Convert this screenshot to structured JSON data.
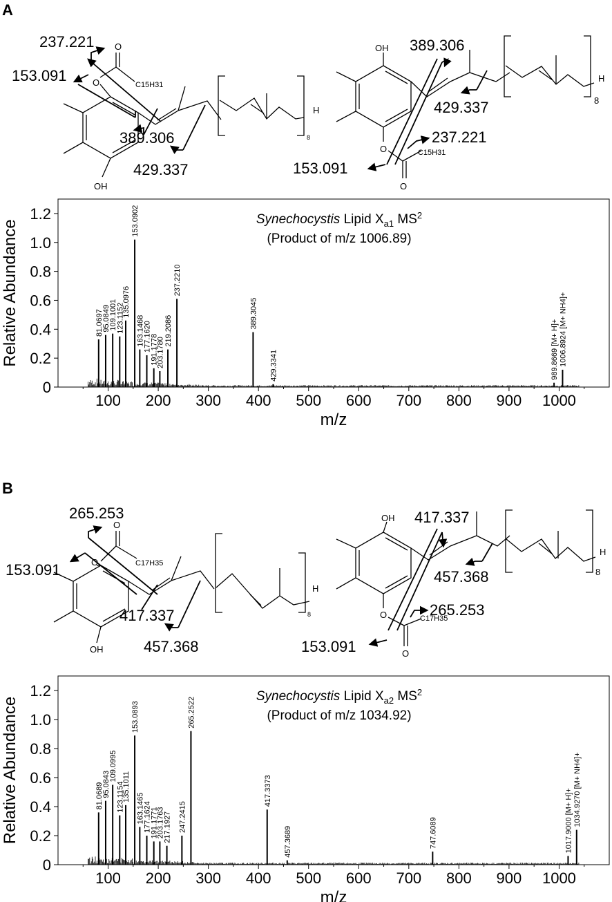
{
  "panels": [
    {
      "letter": "A",
      "structure": {
        "left": {
          "oh": "OH",
          "carbonyl_o": "O",
          "ester_o": "O",
          "chain": "C15H31",
          "h_end": "H",
          "repeat_n": "8",
          "fragments": [
            "237.221",
            "153.091",
            "389.306",
            "429.337"
          ]
        },
        "right": {
          "oh": "OH",
          "carbonyl_o": "O",
          "ester_o": "O",
          "chain": "C15H31",
          "h_end": "H",
          "repeat_n": "8",
          "fragments": [
            "389.306",
            "429.337",
            "237.221",
            "153.091"
          ]
        }
      },
      "chart_data": {
        "type": "bar",
        "title": "Synechocystis  Lipid Xa1  MS2",
        "title_parts": {
          "italic": "Synechocystis",
          "rest": "Lipid X",
          "subscript": "a1",
          "ms": "MS",
          "superscript": "2"
        },
        "subtitle": "(Product of m/z 1006.89)",
        "xlabel": "m/z",
        "ylabel": "Relative Abundance",
        "xlim": [
          0,
          1100
        ],
        "ylim": [
          0,
          1.3
        ],
        "xticks": [
          100,
          200,
          300,
          400,
          500,
          600,
          700,
          800,
          900,
          1000
        ],
        "yticks": [
          0,
          0.2,
          0.4,
          0.6,
          0.8,
          1.0,
          1.2
        ],
        "ytick_labels": [
          "0",
          "0.2",
          "0.4",
          "0.6",
          "0.8",
          "1.0",
          "1.2"
        ],
        "peaks": [
          {
            "x": 81.0697,
            "y": 0.33,
            "label": "81.0697"
          },
          {
            "x": 95.0849,
            "y": 0.36,
            "label": "95.0849"
          },
          {
            "x": 109.1001,
            "y": 0.37,
            "label": "109.1001"
          },
          {
            "x": 123.1152,
            "y": 0.35,
            "label": "123.1152"
          },
          {
            "x": 135.0976,
            "y": 0.46,
            "label": "135.0976"
          },
          {
            "x": 153.0902,
            "y": 1.02,
            "label": "153.0902"
          },
          {
            "x": 163.1468,
            "y": 0.26,
            "label": "163.1468"
          },
          {
            "x": 177.162,
            "y": 0.22,
            "label": "177.1620"
          },
          {
            "x": 191.1778,
            "y": 0.13,
            "label": "191.1778"
          },
          {
            "x": 203.178,
            "y": 0.11,
            "label": "203.1780"
          },
          {
            "x": 219.2086,
            "y": 0.26,
            "label": "219.2086"
          },
          {
            "x": 237.221,
            "y": 0.61,
            "label": "237.2210"
          },
          {
            "x": 389.3045,
            "y": 0.38,
            "label": "389.3045"
          },
          {
            "x": 429.3341,
            "y": 0.02,
            "label": "429.3341"
          },
          {
            "x": 989.8669,
            "y": 0.03,
            "label": "989.8669 [M+ H]+"
          },
          {
            "x": 1006.8924,
            "y": 0.12,
            "label": "1006.8924 [M+ NH4]+"
          }
        ]
      }
    },
    {
      "letter": "B",
      "structure": {
        "left": {
          "oh": "OH",
          "carbonyl_o": "O",
          "ester_o": "O",
          "chain": "C17H35",
          "h_end": "H",
          "repeat_n": "8",
          "fragments": [
            "265.253",
            "153.091",
            "417.337",
            "457.368"
          ]
        },
        "right": {
          "oh": "OH",
          "carbonyl_o": "O",
          "ester_o": "O",
          "chain": "C17H35",
          "h_end": "H",
          "repeat_n": "8",
          "fragments": [
            "417.337",
            "457.368",
            "265.253",
            "153.091"
          ]
        }
      },
      "chart_data": {
        "type": "bar",
        "title": "Synechocystis  Lipid Xa2  MS2",
        "title_parts": {
          "italic": "Synechocystis",
          "rest": "Lipid X",
          "subscript": "a2",
          "ms": "MS",
          "superscript": "2"
        },
        "subtitle": "(Product of m/z 1034.92)",
        "xlabel": "m/z",
        "ylabel": "Relative Abundance",
        "xlim": [
          0,
          1100
        ],
        "ylim": [
          0,
          1.3
        ],
        "xticks": [
          100,
          200,
          300,
          400,
          500,
          600,
          700,
          800,
          900,
          1000
        ],
        "yticks": [
          0,
          0.2,
          0.4,
          0.6,
          0.8,
          1.0,
          1.2
        ],
        "ytick_labels": [
          "0",
          "0.2",
          "0.4",
          "0.6",
          "0.8",
          "1.0",
          "1.2"
        ],
        "peaks": [
          {
            "x": 81.0689,
            "y": 0.36,
            "label": "81.0689"
          },
          {
            "x": 95.0843,
            "y": 0.44,
            "label": "95.0843"
          },
          {
            "x": 109.0995,
            "y": 0.55,
            "label": "109.0995"
          },
          {
            "x": 123.1154,
            "y": 0.34,
            "label": "123.1154"
          },
          {
            "x": 135.1011,
            "y": 0.41,
            "label": "135.1011"
          },
          {
            "x": 153.0893,
            "y": 0.89,
            "label": "153.0893"
          },
          {
            "x": 163.1465,
            "y": 0.26,
            "label": "163.1465"
          },
          {
            "x": 177.1624,
            "y": 0.2,
            "label": "177.1624"
          },
          {
            "x": 191.1771,
            "y": 0.16,
            "label": "191.1771"
          },
          {
            "x": 203.1763,
            "y": 0.16,
            "label": "203.1763"
          },
          {
            "x": 217.1927,
            "y": 0.13,
            "label": "217.1927"
          },
          {
            "x": 247.2415,
            "y": 0.2,
            "label": "247.2415"
          },
          {
            "x": 265.2522,
            "y": 0.92,
            "label": "265.2522"
          },
          {
            "x": 417.3373,
            "y": 0.38,
            "label": "417.3373"
          },
          {
            "x": 457.3689,
            "y": 0.03,
            "label": "457.3689"
          },
          {
            "x": 747.6089,
            "y": 0.09,
            "label": "747.6089"
          },
          {
            "x": 1017.9,
            "y": 0.06,
            "label": "1017.9000 [M+ H]+"
          },
          {
            "x": 1034.927,
            "y": 0.24,
            "label": "1034.9270 [M+ NH4]+"
          }
        ]
      }
    }
  ]
}
